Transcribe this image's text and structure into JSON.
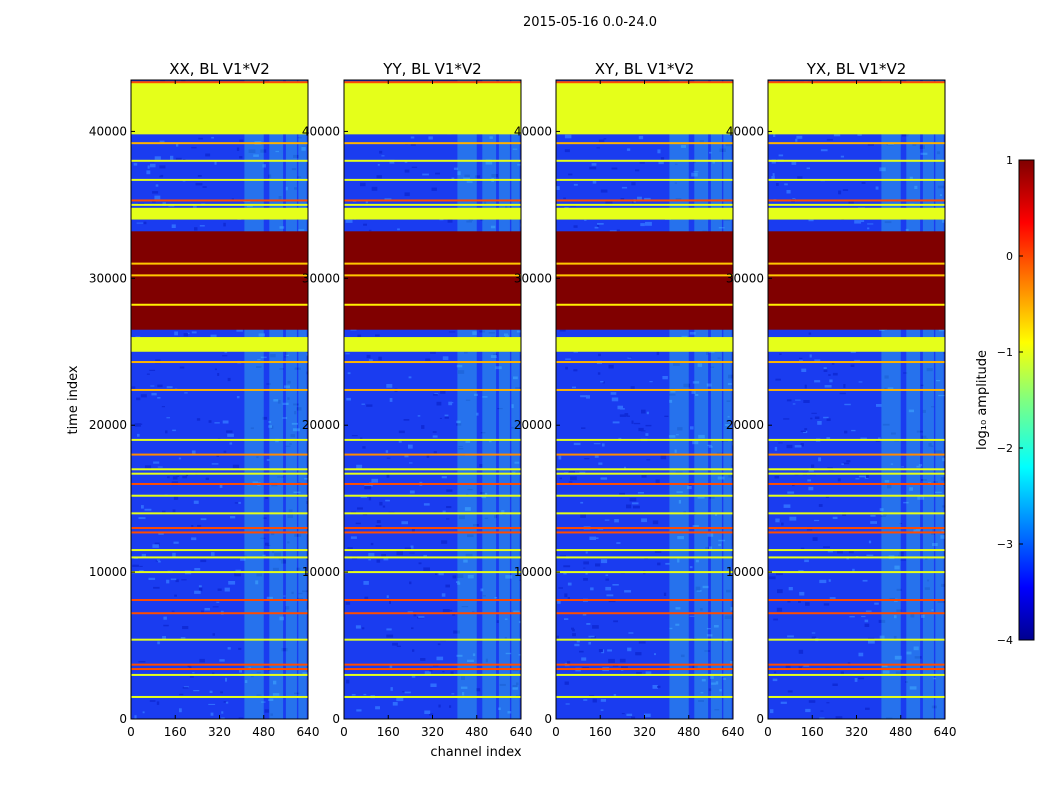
{
  "figure": {
    "suptitle": "2015-05-16 0.0-24.0"
  },
  "colors": {
    "bg_low": "#1a3cf0",
    "bg_mid": "#2e6cff",
    "rfi_cyan": "#3fd6e8",
    "green_band": "#9cff5a",
    "red_band": "#7c0000",
    "orange_line": "#ff6a2a",
    "yellow_line": "#eaff4a"
  },
  "chart_data": [
    {
      "type": "heatmap",
      "title": "XX, BL V1*V2",
      "xlabel": "",
      "ylabel": "time index",
      "xlim": [
        0,
        640
      ],
      "ylim": [
        0,
        43500
      ],
      "xticks": [
        0,
        160,
        320,
        480,
        640
      ],
      "yticks": [
        0,
        10000,
        20000,
        30000,
        40000
      ],
      "rfi_channels": [
        [
          410,
          480
        ],
        [
          500,
          550
        ],
        [
          560,
          600
        ],
        [
          605,
          635
        ]
      ]
    },
    {
      "type": "heatmap",
      "title": "YY, BL V1*V2",
      "xlabel": "channel index",
      "ylabel": "",
      "xlim": [
        0,
        640
      ],
      "ylim": [
        0,
        43500
      ],
      "xticks": [
        0,
        160,
        320,
        480,
        640
      ],
      "yticks": [
        0,
        10000,
        20000,
        30000,
        40000
      ],
      "rfi_channels": [
        [
          410,
          480
        ],
        [
          500,
          550
        ],
        [
          560,
          600
        ],
        [
          605,
          635
        ]
      ]
    },
    {
      "type": "heatmap",
      "title": "XY, BL V1*V2",
      "xlabel": "",
      "ylabel": "",
      "xlim": [
        0,
        640
      ],
      "ylim": [
        0,
        43500
      ],
      "xticks": [
        0,
        160,
        320,
        480,
        640
      ],
      "yticks": [
        0,
        10000,
        20000,
        30000,
        40000
      ],
      "rfi_channels": [
        [
          410,
          480
        ],
        [
          500,
          550
        ],
        [
          560,
          600
        ],
        [
          605,
          635
        ]
      ]
    },
    {
      "type": "heatmap",
      "title": "YX, BL V1*V2",
      "xlabel": "",
      "ylabel": "",
      "xlim": [
        0,
        640
      ],
      "ylim": [
        0,
        43500
      ],
      "xticks": [
        0,
        160,
        320,
        480,
        640
      ],
      "yticks": [
        0,
        10000,
        20000,
        30000,
        40000
      ],
      "rfi_channels": [
        [
          410,
          480
        ],
        [
          500,
          550
        ],
        [
          560,
          600
        ],
        [
          605,
          635
        ]
      ]
    }
  ],
  "time_bands": [
    {
      "from": 39800,
      "to": 43300,
      "value": -1.0
    },
    {
      "from": 34000,
      "to": 34800,
      "value": -1.0
    },
    {
      "from": 26500,
      "to": 33200,
      "value": 1.0
    },
    {
      "from": 25000,
      "to": 26000,
      "value": -1.0
    }
  ],
  "time_lines": [
    {
      "at": 43350,
      "value": 0.0
    },
    {
      "at": 39200,
      "value": -0.5
    },
    {
      "at": 38000,
      "value": -1.0
    },
    {
      "at": 36700,
      "value": -1.0
    },
    {
      "at": 35300,
      "value": 0.0
    },
    {
      "at": 35000,
      "value": -1.0
    },
    {
      "at": 31000,
      "value": -0.6
    },
    {
      "at": 30200,
      "value": -0.6
    },
    {
      "at": 28200,
      "value": -0.8
    },
    {
      "at": 24300,
      "value": -0.5
    },
    {
      "at": 22400,
      "value": -0.5
    },
    {
      "at": 19000,
      "value": -1.0
    },
    {
      "at": 18000,
      "value": -0.3
    },
    {
      "at": 17000,
      "value": -1.0
    },
    {
      "at": 16700,
      "value": -1.0
    },
    {
      "at": 16000,
      "value": 0.0
    },
    {
      "at": 15200,
      "value": -1.0
    },
    {
      "at": 14000,
      "value": -1.0
    },
    {
      "at": 13000,
      "value": 0.0
    },
    {
      "at": 12700,
      "value": 0.0
    },
    {
      "at": 11500,
      "value": -1.0
    },
    {
      "at": 11000,
      "value": -1.0
    },
    {
      "at": 10000,
      "value": -1.0
    },
    {
      "at": 8100,
      "value": 0.0
    },
    {
      "at": 7200,
      "value": 0.0
    },
    {
      "at": 5400,
      "value": -1.0
    },
    {
      "at": 3700,
      "value": 0.0
    },
    {
      "at": 3400,
      "value": 0.0
    },
    {
      "at": 3000,
      "value": -1.0
    },
    {
      "at": 1500,
      "value": -1.0
    }
  ],
  "colorbar": {
    "label": "log₁₀ amplitude",
    "min": -4,
    "max": 1,
    "ticks": [
      1,
      0,
      -1,
      -2,
      -3,
      -4
    ],
    "tick_labels": [
      "1",
      "0",
      "−1",
      "−2",
      "−3",
      "−4"
    ]
  }
}
